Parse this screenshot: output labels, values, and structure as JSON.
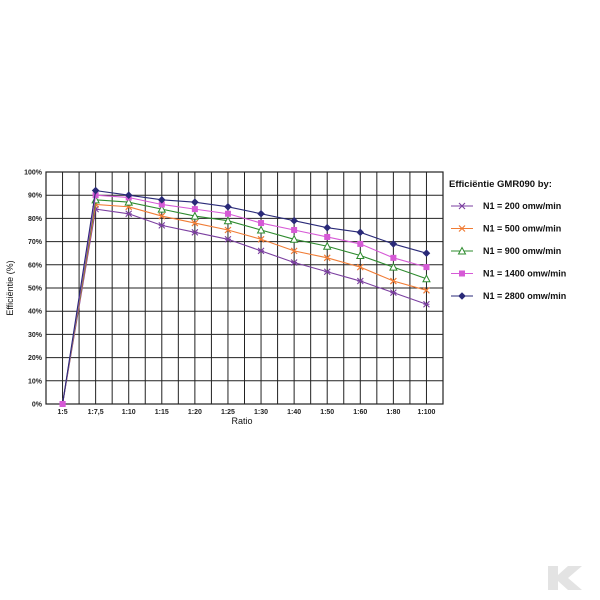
{
  "chart_data": {
    "type": "line",
    "title": "",
    "xlabel": "Ratio",
    "ylabel": "Efficiëntie (%)",
    "categories": [
      "1:5",
      "1:7,5",
      "1:10",
      "1:15",
      "1:20",
      "1:25",
      "1:30",
      "1:40",
      "1:50",
      "1:60",
      "1:80",
      "1:100"
    ],
    "y_ticks": [
      "0%",
      "10%",
      "20%",
      "30%",
      "40%",
      "50%",
      "60%",
      "70%",
      "80%",
      "90%",
      "100%"
    ],
    "ylim": [
      0,
      100
    ],
    "grid": true,
    "legend_position": "right",
    "legend_title": "Efficiëntie GMR090 by:",
    "series": [
      {
        "name": "N1 = 200 omw/min",
        "color": "#7b3fa0",
        "marker": "star",
        "values": [
          0,
          84,
          82,
          77,
          74,
          71,
          66,
          61,
          57,
          53,
          48,
          43
        ]
      },
      {
        "name": "N1 = 500 omw/min",
        "color": "#f07c35",
        "marker": "x",
        "values": [
          0,
          86,
          85,
          81,
          78,
          75,
          71,
          66,
          63,
          59,
          53,
          49
        ]
      },
      {
        "name": "N1 = 900 omw/min",
        "color": "#2e8b2e",
        "marker": "triangle",
        "values": [
          0,
          88,
          87,
          84,
          81,
          79,
          75,
          71,
          68,
          64,
          59,
          54
        ]
      },
      {
        "name": "N1 = 1400 omw/min",
        "color": "#d65ad6",
        "marker": "square",
        "values": [
          0,
          90,
          89,
          86,
          84,
          82,
          78,
          75,
          72,
          69,
          63,
          59
        ]
      },
      {
        "name": "N1 = 2800 omw/min",
        "color": "#2a2a78",
        "marker": "diamond",
        "values": [
          0,
          92,
          90,
          88,
          87,
          85,
          82,
          79,
          76,
          74,
          69,
          65
        ]
      }
    ]
  },
  "colors": {
    "grid": "#222222",
    "plot_border": "#222222",
    "watermark": "#e3e3e3"
  },
  "watermark": {
    "icon": "k-logo-icon"
  }
}
